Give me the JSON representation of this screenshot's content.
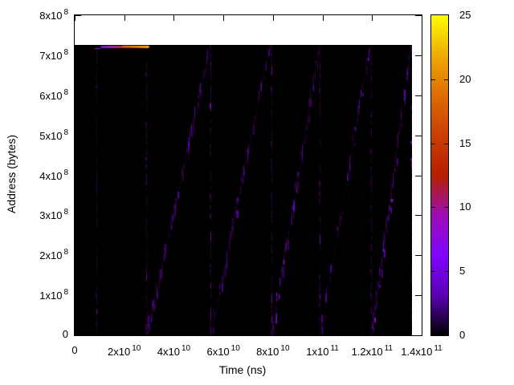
{
  "chart_data": {
    "type": "heatmap",
    "title": "",
    "xlabel": "Time (ns)",
    "ylabel": "Address (bytes)",
    "x_range": [
      0,
      140000000000.0
    ],
    "y_range": [
      0,
      800000000.0
    ],
    "grid": false,
    "x_ticks": [
      {
        "value": 0,
        "label": "0",
        "exp": ""
      },
      {
        "value": 20000000000.0,
        "label": "2x10",
        "exp": "10"
      },
      {
        "value": 40000000000.0,
        "label": "4x10",
        "exp": "10"
      },
      {
        "value": 60000000000.0,
        "label": "6x10",
        "exp": "10"
      },
      {
        "value": 80000000000.0,
        "label": "8x10",
        "exp": "10"
      },
      {
        "value": 100000000000.0,
        "label": "1x10",
        "exp": "11"
      },
      {
        "value": 120000000000.0,
        "label": "1.2x10",
        "exp": "11"
      },
      {
        "value": 140000000000.0,
        "label": "1.4x10",
        "exp": "11"
      }
    ],
    "y_ticks": [
      {
        "value": 0,
        "label": "0",
        "exp": ""
      },
      {
        "value": 100000000.0,
        "label": "1x10",
        "exp": "8"
      },
      {
        "value": 200000000.0,
        "label": "2x10",
        "exp": "8"
      },
      {
        "value": 300000000.0,
        "label": "3x10",
        "exp": "8"
      },
      {
        "value": 400000000.0,
        "label": "4x10",
        "exp": "8"
      },
      {
        "value": 500000000.0,
        "label": "5x10",
        "exp": "8"
      },
      {
        "value": 600000000.0,
        "label": "6x10",
        "exp": "8"
      },
      {
        "value": 700000000.0,
        "label": "7x10",
        "exp": "8"
      },
      {
        "value": 800000000.0,
        "label": "8x10",
        "exp": "8"
      }
    ],
    "colorbar": {
      "min": 0,
      "max": 25,
      "ticks": [
        0,
        5,
        10,
        15,
        20,
        25
      ],
      "palette_name": "gnuplot default pm3d (black-violet-red-yellow)",
      "stops": [
        {
          "at": 0,
          "color": "#000000"
        },
        {
          "at": 0.125,
          "color": "#5a00b4"
        },
        {
          "at": 0.25,
          "color": "#8004ff"
        },
        {
          "at": 0.375,
          "color": "#9c0db4"
        },
        {
          "at": 0.5,
          "color": "#b42000"
        },
        {
          "at": 0.625,
          "color": "#ca3e00"
        },
        {
          "at": 0.75,
          "color": "#dd6c00"
        },
        {
          "at": 0.875,
          "color": "#efab00"
        },
        {
          "at": 1,
          "color": "#ffff00"
        }
      ]
    },
    "data_extent": {
      "t_min": 0,
      "t_max": 136100000000.0,
      "addr_min": 0,
      "addr_max": 726000000.0
    },
    "background_value_color": "#000000",
    "features": {
      "hot_streak": {
        "comment_visible": "bright horizontal access band at top of address space",
        "t0": 8000000000.0,
        "t_main": 10500000000.0,
        "t1": 30000000000.0,
        "addr": 720000000.0,
        "value_approx": 22,
        "gradient": [
          "#6a18c8",
          "#9520b8",
          "#b03048",
          "#cc4a10",
          "#e87406",
          "#ff9d00"
        ]
      },
      "vertical_access_lines": [
        {
          "t": 8800000000.0,
          "strength": 0.6
        },
        {
          "t": 28800000000.0,
          "strength": 1.0
        },
        {
          "t": 54800000000.0,
          "strength": 0.9
        },
        {
          "t": 79400000000.0,
          "strength": 0.8
        },
        {
          "t": 98800000000.0,
          "strength": 0.8
        },
        {
          "t": 119600000000.0,
          "strength": 0.9
        },
        {
          "t": 135800000000.0,
          "strength": 0.5
        }
      ],
      "diagonal_sweeps": [
        {
          "t0": 29000000000.0,
          "t1": 54700000000.0,
          "addr0": 0,
          "addr1": 726000000.0,
          "dashes": 95
        },
        {
          "t0": 55000000000.0,
          "t1": 78500000000.0,
          "addr0": 0,
          "addr1": 726000000.0,
          "dashes": 62
        },
        {
          "t0": 79500000000.0,
          "t1": 98700000000.0,
          "addr0": 0,
          "addr1": 726000000.0,
          "dashes": 85
        },
        {
          "t0": 99000000000.0,
          "t1": 119000000000.0,
          "addr0": 0,
          "addr1": 726000000.0,
          "dashes": 42
        },
        {
          "t0": 119700000000.0,
          "t1": 135700000000.0,
          "addr0": 0,
          "addr1": 726000000.0,
          "dashes": 75
        }
      ],
      "sweep_value_range_approx": [
        1,
        8
      ]
    }
  }
}
